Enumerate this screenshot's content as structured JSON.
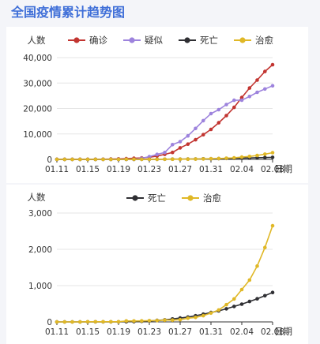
{
  "page": {
    "title": "全国疫情累计趋势图"
  },
  "chart_data": [
    {
      "type": "line",
      "title": "",
      "ylabel": "人数",
      "xlabel": "日期",
      "x": [
        "01.11",
        "01.12",
        "01.13",
        "01.14",
        "01.15",
        "01.16",
        "01.17",
        "01.18",
        "01.19",
        "01.20",
        "01.21",
        "01.22",
        "01.23",
        "01.24",
        "01.25",
        "01.26",
        "01.27",
        "01.28",
        "01.29",
        "01.30",
        "01.31",
        "02.01",
        "02.02",
        "02.03",
        "02.04",
        "02.05",
        "02.06",
        "02.07",
        "02.08"
      ],
      "xticks": [
        "01.11",
        "01.15",
        "01.19",
        "01.23",
        "01.27",
        "01.31",
        "02.04",
        "02.08"
      ],
      "ylim": [
        0,
        40000
      ],
      "yticks": [
        "0",
        "10,000",
        "20,000",
        "30,000",
        "40,000"
      ],
      "legend": "top",
      "series": [
        {
          "name": "确诊",
          "color": "#c23531",
          "values": [
            41,
            41,
            41,
            41,
            41,
            45,
            62,
            121,
            198,
            291,
            440,
            571,
            830,
            1287,
            1975,
            2744,
            4515,
            5974,
            7711,
            9692,
            11791,
            14380,
            17205,
            20438,
            24324,
            28018,
            31161,
            34546,
            37198
          ]
        },
        {
          "name": "疑似",
          "color": "#9d83dd",
          "values": [
            0,
            0,
            0,
            0,
            0,
            0,
            0,
            0,
            0,
            54,
            37,
            393,
            1072,
            1965,
            2684,
            5794,
            6973,
            9239,
            12167,
            15238,
            17988,
            19544,
            21558,
            23214,
            23260,
            24702,
            26359,
            27657,
            28942
          ]
        },
        {
          "name": "死亡",
          "color": "#2f2f33",
          "values": [
            1,
            1,
            1,
            1,
            2,
            2,
            2,
            3,
            3,
            6,
            9,
            17,
            25,
            41,
            56,
            80,
            106,
            132,
            170,
            213,
            259,
            304,
            361,
            425,
            490,
            563,
            636,
            722,
            811
          ]
        },
        {
          "name": "治愈",
          "color": "#e0b827",
          "values": [
            0,
            0,
            0,
            0,
            5,
            5,
            5,
            5,
            5,
            25,
            25,
            28,
            34,
            38,
            49,
            51,
            60,
            103,
            124,
            171,
            243,
            328,
            475,
            632,
            892,
            1153,
            1540,
            2050,
            2649
          ]
        }
      ]
    },
    {
      "type": "line",
      "title": "",
      "ylabel": "人数",
      "xlabel": "日期",
      "x": [
        "01.11",
        "01.12",
        "01.13",
        "01.14",
        "01.15",
        "01.16",
        "01.17",
        "01.18",
        "01.19",
        "01.20",
        "01.21",
        "01.22",
        "01.23",
        "01.24",
        "01.25",
        "01.26",
        "01.27",
        "01.28",
        "01.29",
        "01.30",
        "01.31",
        "02.01",
        "02.02",
        "02.03",
        "02.04",
        "02.05",
        "02.06",
        "02.07",
        "02.08"
      ],
      "xticks": [
        "01.11",
        "01.15",
        "01.19",
        "01.23",
        "01.27",
        "01.31",
        "02.04",
        "02.08"
      ],
      "ylim": [
        0,
        3000
      ],
      "yticks": [
        "0",
        "1,000",
        "2,000",
        "3,000"
      ],
      "legend": "top",
      "series": [
        {
          "name": "死亡",
          "color": "#2f2f33",
          "values": [
            1,
            1,
            1,
            1,
            2,
            2,
            2,
            3,
            3,
            6,
            9,
            17,
            25,
            41,
            56,
            80,
            106,
            132,
            170,
            213,
            259,
            304,
            361,
            425,
            490,
            563,
            636,
            722,
            811
          ]
        },
        {
          "name": "治愈",
          "color": "#e0b827",
          "values": [
            0,
            0,
            0,
            0,
            5,
            5,
            5,
            5,
            5,
            25,
            25,
            28,
            34,
            38,
            49,
            51,
            60,
            103,
            124,
            171,
            243,
            328,
            475,
            632,
            892,
            1153,
            1540,
            2050,
            2649
          ]
        }
      ]
    }
  ]
}
